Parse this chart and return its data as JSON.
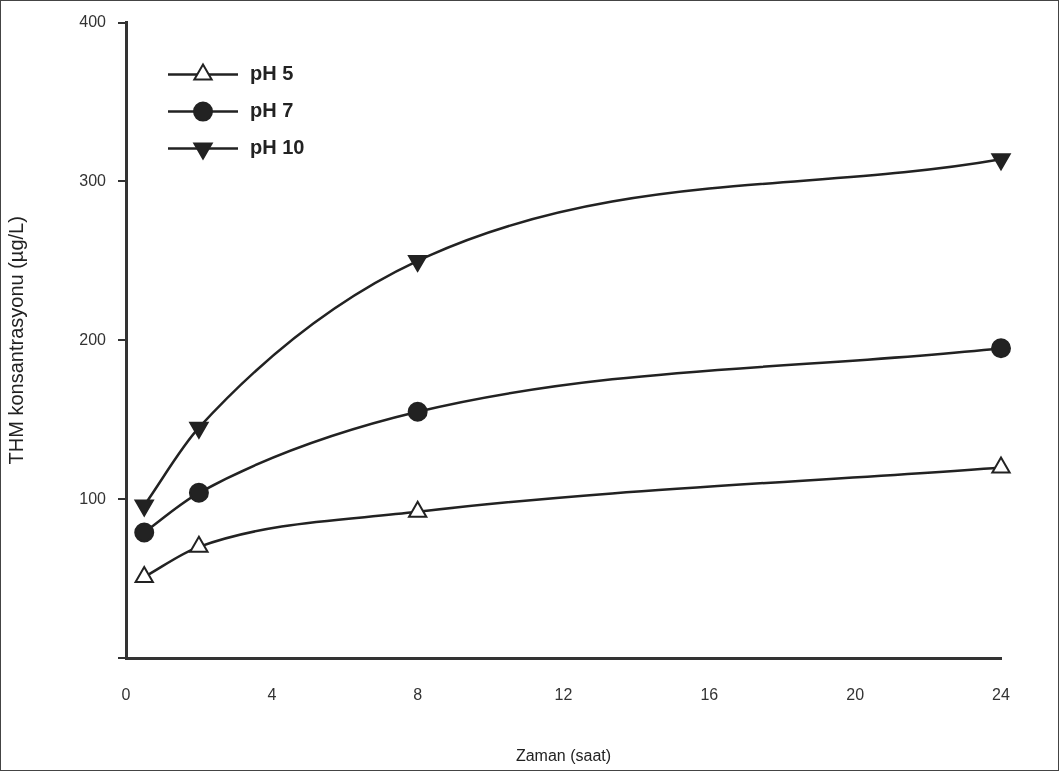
{
  "chart_data": {
    "type": "line",
    "xlabel": "Zaman (saat)",
    "ylabel": "THM konsantrasyonu (µg/L)",
    "x": [
      0.5,
      2,
      8,
      24
    ],
    "series": [
      {
        "name": "pH 5",
        "color": "#222222",
        "marker": "triangle-open",
        "values": [
          51,
          70,
          92,
          120
        ]
      },
      {
        "name": "pH 7",
        "color": "#222222",
        "marker": "circle",
        "values": [
          79,
          104,
          155,
          195
        ]
      },
      {
        "name": "pH 10",
        "color": "#222222",
        "marker": "triangle-down",
        "values": [
          96,
          145,
          250,
          314
        ]
      }
    ],
    "xlim": [
      0,
      24
    ],
    "xticks": [
      0,
      4,
      8,
      12,
      16,
      20,
      24
    ],
    "ylim": [
      0,
      400
    ],
    "yticks": [
      {
        "value": 0,
        "label": null
      },
      100,
      200,
      300,
      400
    ],
    "grid": false,
    "legend": "top left"
  }
}
